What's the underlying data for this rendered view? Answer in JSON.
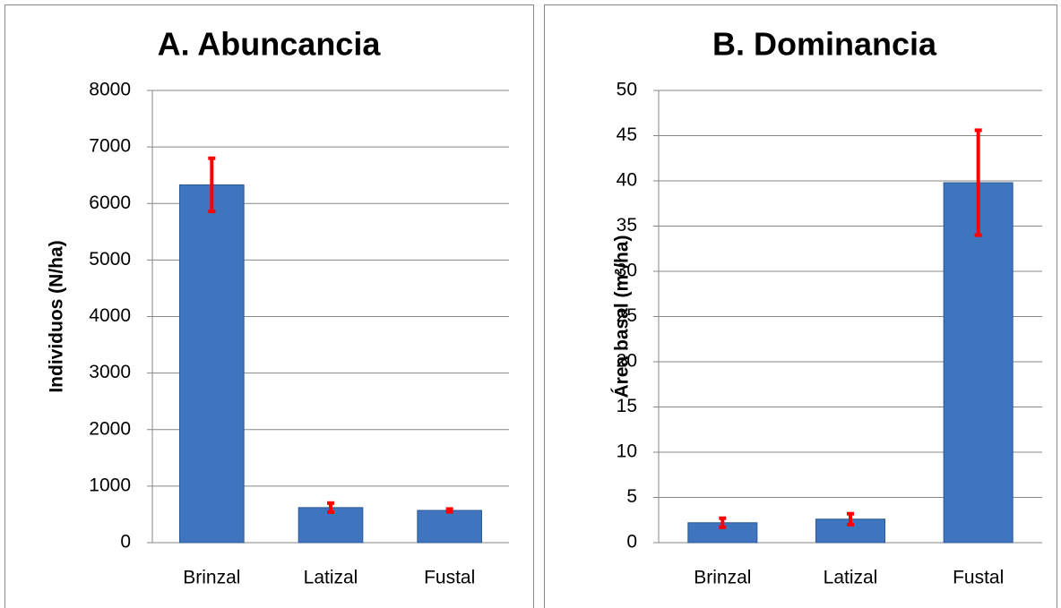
{
  "chart_data": [
    {
      "type": "bar",
      "title": "A. Abuncancia",
      "y_label": "Individuos (N/ha)",
      "categories": [
        "Brinzal",
        "Latizal",
        "Fustal"
      ],
      "values": [
        6330,
        620,
        570
      ],
      "errors": [
        470,
        80,
        25
      ],
      "color": "#3f75bf",
      "error_color": "#ff0000",
      "ylim": [
        0,
        8000
      ],
      "yticks": [
        0,
        1000,
        2000,
        3000,
        4000,
        5000,
        6000,
        7000,
        8000
      ],
      "grid": true
    },
    {
      "type": "bar",
      "title": "B. Dominancia",
      "y_label": "Área basal (m²/ha)",
      "categories": [
        "Brinzal",
        "Latizal",
        "Fustal"
      ],
      "values": [
        2.2,
        2.6,
        39.8
      ],
      "errors": [
        0.5,
        0.6,
        5.8
      ],
      "color": "#3f75bf",
      "error_color": "#ff0000",
      "ylim": [
        0,
        50
      ],
      "yticks": [
        0,
        5,
        10,
        15,
        20,
        25,
        30,
        35,
        40,
        45,
        50
      ],
      "grid": true
    }
  ]
}
